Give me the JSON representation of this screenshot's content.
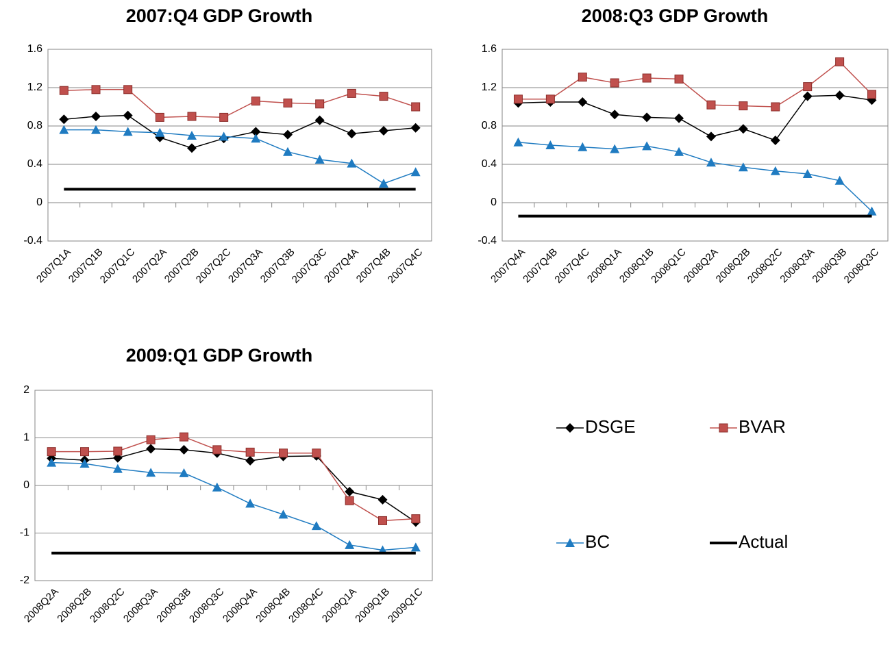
{
  "chart_data": [
    {
      "type": "line",
      "title": "2007:Q4 GDP Growth",
      "categories": [
        "2007Q1A",
        "2007Q1B",
        "2007Q1C",
        "2007Q2A",
        "2007Q2B",
        "2007Q2C",
        "2007Q3A",
        "2007Q3B",
        "2007Q3C",
        "2007Q4A",
        "2007Q4B",
        "2007Q4C"
      ],
      "ylim": [
        -0.4,
        1.6
      ],
      "yticks": [
        -0.4,
        0,
        0.4,
        0.8,
        1.2,
        1.6
      ],
      "grid": true,
      "series": [
        {
          "name": "DSGE",
          "color": "#000000",
          "marker": "diamond",
          "values": [
            0.87,
            0.9,
            0.91,
            0.68,
            0.57,
            0.67,
            0.74,
            0.71,
            0.86,
            0.72,
            0.75,
            0.78
          ]
        },
        {
          "name": "BVAR",
          "color": "#c0504d",
          "marker": "square",
          "values": [
            1.17,
            1.18,
            1.18,
            0.89,
            0.9,
            0.89,
            1.06,
            1.04,
            1.03,
            1.14,
            1.11,
            1.0
          ]
        },
        {
          "name": "BC",
          "color": "#1f7bc1",
          "marker": "triangle",
          "values": [
            0.76,
            0.76,
            0.74,
            0.73,
            0.7,
            0.69,
            0.67,
            0.53,
            0.45,
            0.41,
            0.2,
            0.32
          ]
        },
        {
          "name": "Actual",
          "color": "#000000",
          "width": 4,
          "values": [
            0.14,
            0.14,
            0.14,
            0.14,
            0.14,
            0.14,
            0.14,
            0.14,
            0.14,
            0.14,
            0.14,
            0.14
          ]
        }
      ]
    },
    {
      "type": "line",
      "title": "2008:Q3 GDP Growth",
      "categories": [
        "2007Q4A",
        "2007Q4B",
        "2007Q4C",
        "2008Q1A",
        "2008Q1B",
        "2008Q1C",
        "2008Q2A",
        "2008Q2B",
        "2008Q2C",
        "2008Q3A",
        "2008Q3B",
        "2008Q3C"
      ],
      "ylim": [
        -0.4,
        1.6
      ],
      "yticks": [
        -0.4,
        0,
        0.4,
        0.8,
        1.2,
        1.6
      ],
      "grid": true,
      "series": [
        {
          "name": "DSGE",
          "color": "#000000",
          "marker": "diamond",
          "values": [
            1.04,
            1.05,
            1.05,
            0.92,
            0.89,
            0.88,
            0.69,
            0.77,
            0.65,
            1.11,
            1.12,
            1.07
          ]
        },
        {
          "name": "BVAR",
          "color": "#c0504d",
          "marker": "square",
          "values": [
            1.08,
            1.08,
            1.31,
            1.25,
            1.3,
            1.29,
            1.02,
            1.01,
            1.0,
            1.21,
            1.47,
            1.13
          ]
        },
        {
          "name": "BC",
          "color": "#1f7bc1",
          "marker": "triangle",
          "values": [
            0.63,
            0.6,
            0.58,
            0.56,
            0.59,
            0.53,
            0.42,
            0.37,
            0.33,
            0.3,
            0.23,
            -0.09
          ]
        },
        {
          "name": "Actual",
          "color": "#000000",
          "width": 4,
          "values": [
            -0.14,
            -0.14,
            -0.14,
            -0.14,
            -0.14,
            -0.14,
            -0.14,
            -0.14,
            -0.14,
            -0.14,
            -0.14,
            -0.14
          ]
        }
      ]
    },
    {
      "type": "line",
      "title": "2009:Q1 GDP Growth",
      "categories": [
        "2008Q2A",
        "2008Q2B",
        "2008Q2C",
        "2008Q3A",
        "2008Q3B",
        "2008Q3C",
        "2008Q4A",
        "2008Q4B",
        "2008Q4C",
        "2009Q1A",
        "2009Q1B",
        "2009Q1C"
      ],
      "ylim": [
        -2,
        2
      ],
      "yticks": [
        -2,
        -1,
        0,
        1,
        2
      ],
      "grid": true,
      "series": [
        {
          "name": "DSGE",
          "color": "#000000",
          "marker": "diamond",
          "values": [
            0.57,
            0.53,
            0.58,
            0.77,
            0.75,
            0.68,
            0.52,
            0.61,
            0.62,
            -0.13,
            -0.3,
            -0.77
          ]
        },
        {
          "name": "BVAR",
          "color": "#c0504d",
          "marker": "square",
          "values": [
            0.71,
            0.71,
            0.72,
            0.96,
            1.02,
            0.75,
            0.7,
            0.68,
            0.68,
            -0.32,
            -0.74,
            -0.7
          ]
        },
        {
          "name": "BC",
          "color": "#1f7bc1",
          "marker": "triangle",
          "values": [
            0.48,
            0.46,
            0.35,
            0.27,
            0.26,
            -0.04,
            -0.38,
            -0.61,
            -0.85,
            -1.25,
            -1.36,
            -1.3
          ]
        },
        {
          "name": "Actual",
          "color": "#000000",
          "width": 4,
          "values": [
            -1.42,
            -1.42,
            -1.42,
            -1.42,
            -1.42,
            -1.42,
            -1.42,
            -1.42,
            -1.42,
            -1.42,
            -1.42,
            -1.42
          ]
        }
      ]
    }
  ]
}
